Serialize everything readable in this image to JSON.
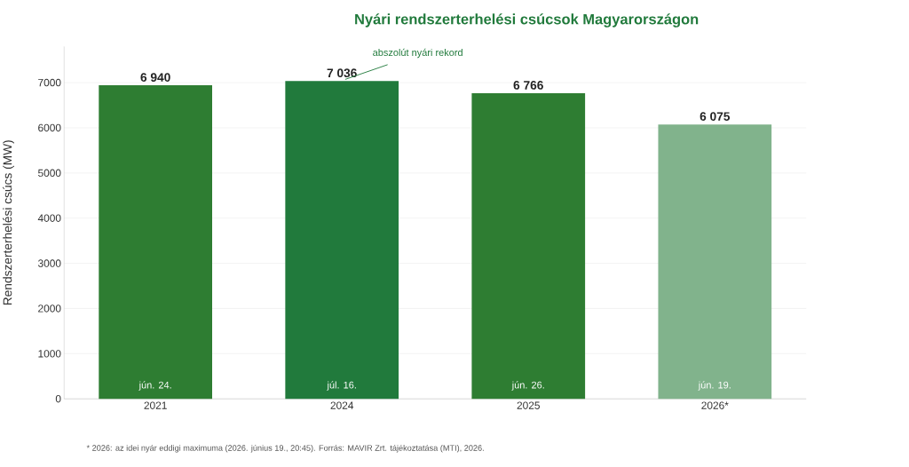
{
  "chart_data": {
    "type": "bar",
    "title": "Nyári rendszerterhelési csúcsok Magyarországon",
    "ylabel": "Rendszerterhelési csúcs (MW)",
    "categories": [
      "2021",
      "2024",
      "2025",
      "2026*"
    ],
    "values": [
      6940,
      7036,
      6766,
      6075
    ],
    "value_labels": [
      "6 940",
      "7 036",
      "6 766",
      "6 075"
    ],
    "colors": [
      "#2e7d32",
      "#217a3c",
      "#2e7d32",
      "#81b38c"
    ],
    "ylim": [
      0,
      7800
    ],
    "yticks": [
      0,
      1000,
      2000,
      3000,
      4000,
      5000,
      6000,
      7000
    ],
    "grid": "y",
    "annotations": [
      {
        "text": "abszolút nyári rekord",
        "x": "2024",
        "y": 7036
      },
      "jún. 24.",
      "júl. 16.",
      "jún. 26.",
      "jún. 19.",
      "* 2026: az idei nyár eddigi maximuma (2026. június 19., 20:45). Forrás: MAVIR Zrt. tájékoztatása (MTI), 2026."
    ]
  }
}
